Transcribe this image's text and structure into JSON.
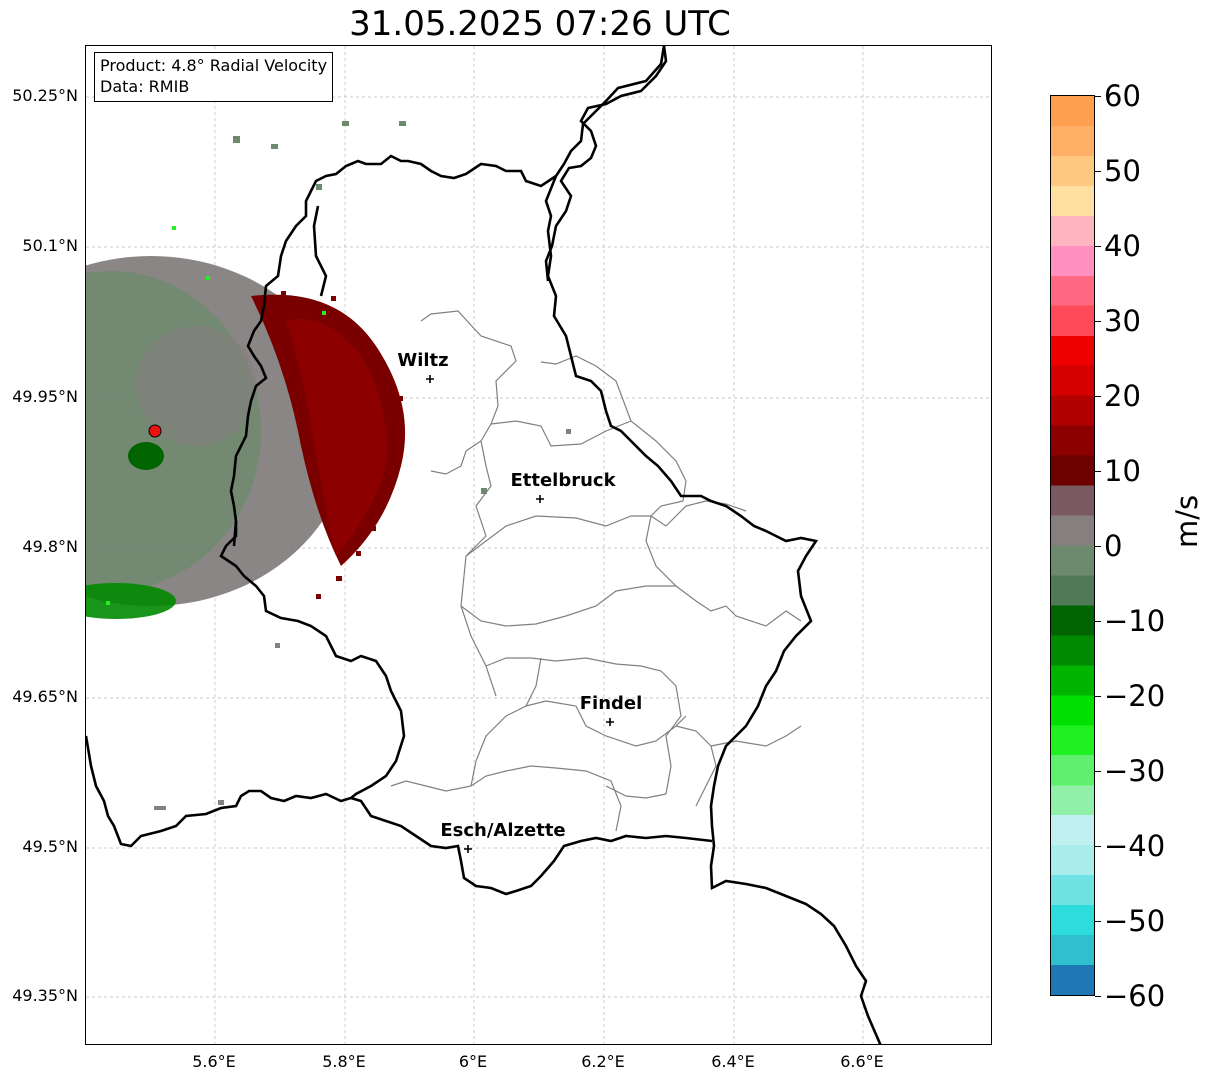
{
  "title": "31.05.2025 07:26 UTC",
  "info": {
    "product": "Product: 4.8° Radial Velocity",
    "source": "Data: RMIB"
  },
  "lat_labels": [
    "50.25°N",
    "50.1°N",
    "49.95°N",
    "49.8°N",
    "49.65°N",
    "49.5°N",
    "49.35°N"
  ],
  "lon_labels": [
    "5.6°E",
    "5.8°E",
    "6°E",
    "6.2°E",
    "6.4°E",
    "6.6°E"
  ],
  "cities": [
    {
      "name": "Wiltz"
    },
    {
      "name": "Ettelbruck"
    },
    {
      "name": "Findel"
    },
    {
      "name": "Esch/Alzette"
    }
  ],
  "colorbar": {
    "unit": "m/s",
    "ticks": [
      "60",
      "50",
      "40",
      "30",
      "20",
      "10",
      "0",
      "−10",
      "−20",
      "−30",
      "−40",
      "−50",
      "−60"
    ],
    "range": [
      -60,
      60
    ],
    "colors": [
      "#1f77b4",
      "#2fbfcf",
      "#2fdcdc",
      "#6fe3e3",
      "#a8ecec",
      "#c0f0f0",
      "#90f0a8",
      "#5ff070",
      "#20f020",
      "#00e000",
      "#00b400",
      "#008a00",
      "#006400",
      "#4f7a55",
      "#6e8a6e",
      "#857f80",
      "#7a5a60",
      "#6e0000",
      "#8c0000",
      "#b00000",
      "#d40000",
      "#ee0000",
      "#ff4a5a",
      "#ff6a82",
      "#ff90c0",
      "#ffb4c0",
      "#ffe0a0",
      "#ffc880",
      "#ffb066",
      "#ffa050"
    ]
  },
  "radar": {
    "site_color": "#ee1111"
  }
}
